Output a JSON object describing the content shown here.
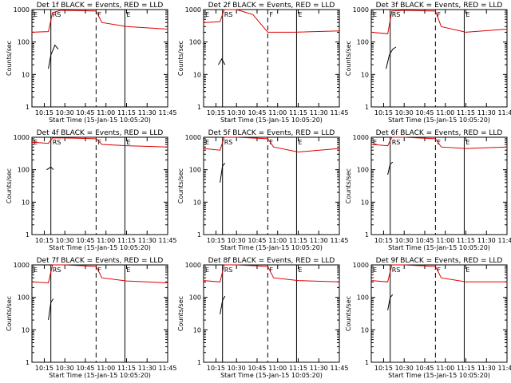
{
  "colors": {
    "events": "#000000",
    "lld": "#dd0000"
  },
  "chart_data": [
    {
      "title": "Det 1f BLACK = Events, RED = LLD",
      "xlabel": "Start Time (15-Jan-15 10:05:20)",
      "ylabel": "Counts/sec",
      "type": "line",
      "xlim": [
        10.1,
        11.75
      ],
      "ylim": [
        1,
        1000
      ],
      "yscale": "log",
      "xticks": [
        "10:15",
        "10:30",
        "10:45",
        "11:00",
        "11:15",
        "11:30",
        "11:45"
      ],
      "yticks": [
        "1",
        "10",
        "100",
        "1000"
      ],
      "markers": [
        {
          "label": "E",
          "x": 10.1,
          "style": "solid"
        },
        {
          "label": "RS",
          "x": 10.33,
          "style": "solid"
        },
        {
          "label": "F",
          "x": 10.88,
          "style": "dashed"
        },
        {
          "label": "E",
          "x": 11.23,
          "style": "solid"
        }
      ],
      "series": [
        {
          "name": "Events",
          "values": [
            [
              10.3,
              15
            ],
            [
              10.33,
              40
            ],
            [
              10.36,
              60
            ],
            [
              10.38,
              80
            ],
            [
              10.42,
              60
            ]
          ]
        },
        {
          "name": "LLD",
          "values": [
            [
              10.1,
              200
            ],
            [
              10.3,
              210
            ],
            [
              10.35,
              800
            ],
            [
              10.45,
              950
            ],
            [
              10.88,
              900
            ],
            [
              10.95,
              400
            ],
            [
              11.25,
              300
            ],
            [
              11.75,
              250
            ]
          ]
        }
      ],
      "annotations": [
        "E",
        "RS",
        "F",
        "E"
      ]
    },
    {
      "title": "Det 2f BLACK = Events, RED = LLD",
      "xlabel": "Start Time (15-Jan-15 10:05:20)",
      "ylabel": "Counts/sec",
      "type": "line",
      "xlim": [
        10.1,
        11.75
      ],
      "ylim": [
        1,
        1000
      ],
      "yscale": "log",
      "xticks": [
        "10:15",
        "10:30",
        "10:45",
        "11:00",
        "11:15",
        "11:30",
        "11:45"
      ],
      "yticks": [
        "1",
        "10",
        "100",
        "1000"
      ],
      "markers": [
        {
          "label": "E",
          "x": 10.1,
          "style": "solid"
        },
        {
          "label": "RS",
          "x": 10.33,
          "style": "solid"
        },
        {
          "label": "F",
          "x": 10.88,
          "style": "dashed"
        },
        {
          "label": "E",
          "x": 11.23,
          "style": "solid"
        }
      ],
      "series": [
        {
          "name": "Events",
          "values": [
            [
              10.28,
              20
            ],
            [
              10.32,
              30
            ],
            [
              10.36,
              20
            ]
          ]
        },
        {
          "name": "LLD",
          "values": [
            [
              10.1,
              400
            ],
            [
              10.3,
              420
            ],
            [
              10.35,
              1000
            ],
            [
              10.5,
              1000
            ],
            [
              10.7,
              700
            ],
            [
              10.88,
              200
            ],
            [
              11.2,
              200
            ],
            [
              11.75,
              220
            ]
          ]
        }
      ],
      "annotations": [
        "E",
        "RS",
        "F",
        "E"
      ]
    },
    {
      "title": "Det 3f BLACK = Events, RED = LLD",
      "xlabel": "Start Time (15-Jan-15 10:05:20)",
      "ylabel": "Counts/sec",
      "type": "line",
      "xlim": [
        10.1,
        11.75
      ],
      "ylim": [
        1,
        1000
      ],
      "yscale": "log",
      "xticks": [
        "10:15",
        "10:30",
        "10:45",
        "11:00",
        "11:15",
        "11:30",
        "11:45"
      ],
      "yticks": [
        "1",
        "10",
        "100",
        "1000"
      ],
      "markers": [
        {
          "label": "E",
          "x": 10.1,
          "style": "solid"
        },
        {
          "label": "RS",
          "x": 10.33,
          "style": "solid"
        },
        {
          "label": "F",
          "x": 10.88,
          "style": "dashed"
        },
        {
          "label": "E",
          "x": 11.23,
          "style": "solid"
        }
      ],
      "series": [
        {
          "name": "Events",
          "values": [
            [
              10.28,
              15
            ],
            [
              10.32,
              40
            ],
            [
              10.36,
              60
            ],
            [
              10.4,
              70
            ]
          ]
        },
        {
          "name": "LLD",
          "values": [
            [
              10.1,
              200
            ],
            [
              10.3,
              180
            ],
            [
              10.35,
              900
            ],
            [
              10.5,
              950
            ],
            [
              10.88,
              900
            ],
            [
              10.95,
              300
            ],
            [
              11.25,
              200
            ],
            [
              11.75,
              250
            ]
          ]
        }
      ],
      "annotations": [
        "E",
        "RS",
        "F",
        "E"
      ]
    },
    {
      "title": "Det 4f BLACK = Events, RED = LLD",
      "xlabel": "Start Time (15-Jan-15 10:05:20)",
      "ylabel": "Counts/sec",
      "type": "line",
      "xlim": [
        10.1,
        11.75
      ],
      "ylim": [
        1,
        1000
      ],
      "yscale": "log",
      "xticks": [
        "10:15",
        "10:30",
        "10:45",
        "11:00",
        "11:15",
        "11:30",
        "11:45"
      ],
      "yticks": [
        "1",
        "10",
        "100",
        "1000"
      ],
      "markers": [
        {
          "label": "E",
          "x": 10.1,
          "style": "solid"
        },
        {
          "label": "RS",
          "x": 10.33,
          "style": "solid"
        },
        {
          "label": "F",
          "x": 10.88,
          "style": "dashed"
        },
        {
          "label": "E",
          "x": 11.23,
          "style": "solid"
        }
      ],
      "series": [
        {
          "name": "Events",
          "values": [
            [
              10.28,
              100
            ],
            [
              10.33,
              120
            ],
            [
              10.36,
              100
            ]
          ]
        },
        {
          "name": "LLD",
          "values": [
            [
              10.1,
              700
            ],
            [
              10.3,
              650
            ],
            [
              10.35,
              950
            ],
            [
              10.5,
              950
            ],
            [
              10.88,
              900
            ],
            [
              10.95,
              600
            ],
            [
              11.25,
              550
            ],
            [
              11.75,
              500
            ]
          ]
        }
      ],
      "annotations": [
        "E",
        "RS",
        "F",
        "E"
      ]
    },
    {
      "title": "Det 5f BLACK = Events, RED = LLD",
      "xlabel": "Start Time (15-Jan-15 10:05:20)",
      "ylabel": "Counts/sec",
      "type": "line",
      "xlim": [
        10.1,
        11.75
      ],
      "ylim": [
        1,
        1000
      ],
      "yscale": "log",
      "xticks": [
        "10:15",
        "10:30",
        "10:45",
        "11:00",
        "11:15",
        "11:30",
        "11:45"
      ],
      "yticks": [
        "1",
        "10",
        "100",
        "1000"
      ],
      "markers": [
        {
          "label": "E",
          "x": 10.1,
          "style": "solid"
        },
        {
          "label": "RS",
          "x": 10.33,
          "style": "solid"
        },
        {
          "label": "F",
          "x": 10.88,
          "style": "dashed"
        },
        {
          "label": "E",
          "x": 11.23,
          "style": "solid"
        }
      ],
      "series": [
        {
          "name": "Events",
          "values": [
            [
              10.3,
              40
            ],
            [
              10.33,
              130
            ],
            [
              10.36,
              160
            ]
          ]
        },
        {
          "name": "LLD",
          "values": [
            [
              10.1,
              450
            ],
            [
              10.3,
              400
            ],
            [
              10.35,
              1000
            ],
            [
              10.5,
              1000
            ],
            [
              10.88,
              900
            ],
            [
              10.95,
              500
            ],
            [
              11.25,
              350
            ],
            [
              11.75,
              450
            ]
          ]
        }
      ],
      "annotations": [
        "E",
        "RS",
        "F",
        "E"
      ]
    },
    {
      "title": "Det 6f BLACK = Events, RED = LLD",
      "xlabel": "Start Time (15-Jan-15 10:05:20)",
      "ylabel": "Counts/sec",
      "type": "line",
      "xlim": [
        10.1,
        11.75
      ],
      "ylim": [
        1,
        1000
      ],
      "yscale": "log",
      "xticks": [
        "10:15",
        "10:30",
        "10:45",
        "11:00",
        "11:15",
        "11:30",
        "11:45"
      ],
      "yticks": [
        "1",
        "10",
        "100",
        "1000"
      ],
      "markers": [
        {
          "label": "E",
          "x": 10.1,
          "style": "solid"
        },
        {
          "label": "RS",
          "x": 10.33,
          "style": "solid"
        },
        {
          "label": "F",
          "x": 10.88,
          "style": "dashed"
        },
        {
          "label": "E",
          "x": 11.23,
          "style": "solid"
        }
      ],
      "series": [
        {
          "name": "Events",
          "values": [
            [
              10.3,
              70
            ],
            [
              10.33,
              150
            ],
            [
              10.36,
              170
            ]
          ]
        },
        {
          "name": "LLD",
          "values": [
            [
              10.1,
              600
            ],
            [
              10.3,
              550
            ],
            [
              10.35,
              1000
            ],
            [
              10.5,
              1000
            ],
            [
              10.88,
              900
            ],
            [
              10.95,
              500
            ],
            [
              11.25,
              450
            ],
            [
              11.75,
              500
            ]
          ]
        }
      ],
      "annotations": [
        "E",
        "RS",
        "F",
        "E"
      ]
    },
    {
      "title": "Det 7f BLACK = Events, RED = LLD",
      "xlabel": "Start Time (15-Jan-15 10:05:20)",
      "ylabel": "Counts/sec",
      "type": "line",
      "xlim": [
        10.1,
        11.75
      ],
      "ylim": [
        1,
        1000
      ],
      "yscale": "log",
      "xticks": [
        "10:15",
        "10:30",
        "10:45",
        "11:00",
        "11:15",
        "11:30",
        "11:45"
      ],
      "yticks": [
        "1",
        "10",
        "100",
        "1000"
      ],
      "markers": [
        {
          "label": "E",
          "x": 10.1,
          "style": "solid"
        },
        {
          "label": "RS",
          "x": 10.33,
          "style": "solid"
        },
        {
          "label": "F",
          "x": 10.88,
          "style": "dashed"
        },
        {
          "label": "E",
          "x": 11.23,
          "style": "solid"
        }
      ],
      "series": [
        {
          "name": "Events",
          "values": [
            [
              10.3,
              20
            ],
            [
              10.33,
              70
            ],
            [
              10.36,
              90
            ]
          ]
        },
        {
          "name": "LLD",
          "values": [
            [
              10.1,
              300
            ],
            [
              10.3,
              280
            ],
            [
              10.35,
              1000
            ],
            [
              10.5,
              1000
            ],
            [
              10.88,
              900
            ],
            [
              10.95,
              400
            ],
            [
              11.25,
              320
            ],
            [
              11.75,
              280
            ]
          ]
        }
      ],
      "annotations": [
        "E",
        "RS",
        "F",
        "E"
      ]
    },
    {
      "title": "Det 8f BLACK = Events, RED = LLD",
      "xlabel": "Start Time (15-Jan-15 10:05:20)",
      "ylabel": "Counts/sec",
      "type": "line",
      "xlim": [
        10.1,
        11.75
      ],
      "ylim": [
        1,
        1000
      ],
      "yscale": "log",
      "xticks": [
        "10:15",
        "10:30",
        "10:45",
        "11:00",
        "11:15",
        "11:30",
        "11:45"
      ],
      "yticks": [
        "1",
        "10",
        "100",
        "1000"
      ],
      "markers": [
        {
          "label": "E",
          "x": 10.1,
          "style": "solid"
        },
        {
          "label": "RS",
          "x": 10.33,
          "style": "solid"
        },
        {
          "label": "F",
          "x": 10.88,
          "style": "dashed"
        },
        {
          "label": "E",
          "x": 11.23,
          "style": "solid"
        }
      ],
      "series": [
        {
          "name": "Events",
          "values": [
            [
              10.3,
              30
            ],
            [
              10.33,
              80
            ],
            [
              10.36,
              110
            ]
          ]
        },
        {
          "name": "LLD",
          "values": [
            [
              10.1,
              330
            ],
            [
              10.3,
              300
            ],
            [
              10.35,
              1000
            ],
            [
              10.5,
              1000
            ],
            [
              10.88,
              900
            ],
            [
              10.95,
              400
            ],
            [
              11.25,
              330
            ],
            [
              11.75,
              300
            ]
          ]
        }
      ],
      "annotations": [
        "E",
        "RS",
        "F",
        "E"
      ]
    },
    {
      "title": "Det 9f BLACK = Events, RED = LLD",
      "xlabel": "Start Time (15-Jan-15 10:05:20)",
      "ylabel": "Counts/sec",
      "type": "line",
      "xlim": [
        10.1,
        11.75
      ],
      "ylim": [
        1,
        1000
      ],
      "yscale": "log",
      "xticks": [
        "10:15",
        "10:30",
        "10:45",
        "11:00",
        "11:15",
        "11:30",
        "11:45"
      ],
      "yticks": [
        "1",
        "10",
        "100",
        "1000"
      ],
      "markers": [
        {
          "label": "E",
          "x": 10.1,
          "style": "solid"
        },
        {
          "label": "RS",
          "x": 10.33,
          "style": "solid"
        },
        {
          "label": "F",
          "x": 10.88,
          "style": "dashed"
        },
        {
          "label": "E",
          "x": 11.23,
          "style": "solid"
        }
      ],
      "series": [
        {
          "name": "Events",
          "values": [
            [
              10.3,
              40
            ],
            [
              10.33,
              100
            ],
            [
              10.36,
              120
            ]
          ]
        },
        {
          "name": "LLD",
          "values": [
            [
              10.1,
              330
            ],
            [
              10.3,
              300
            ],
            [
              10.35,
              1000
            ],
            [
              10.5,
              1000
            ],
            [
              10.88,
              900
            ],
            [
              10.95,
              400
            ],
            [
              11.25,
              300
            ],
            [
              11.75,
              300
            ]
          ]
        }
      ],
      "annotations": [
        "E",
        "RS",
        "F",
        "E"
      ]
    }
  ]
}
